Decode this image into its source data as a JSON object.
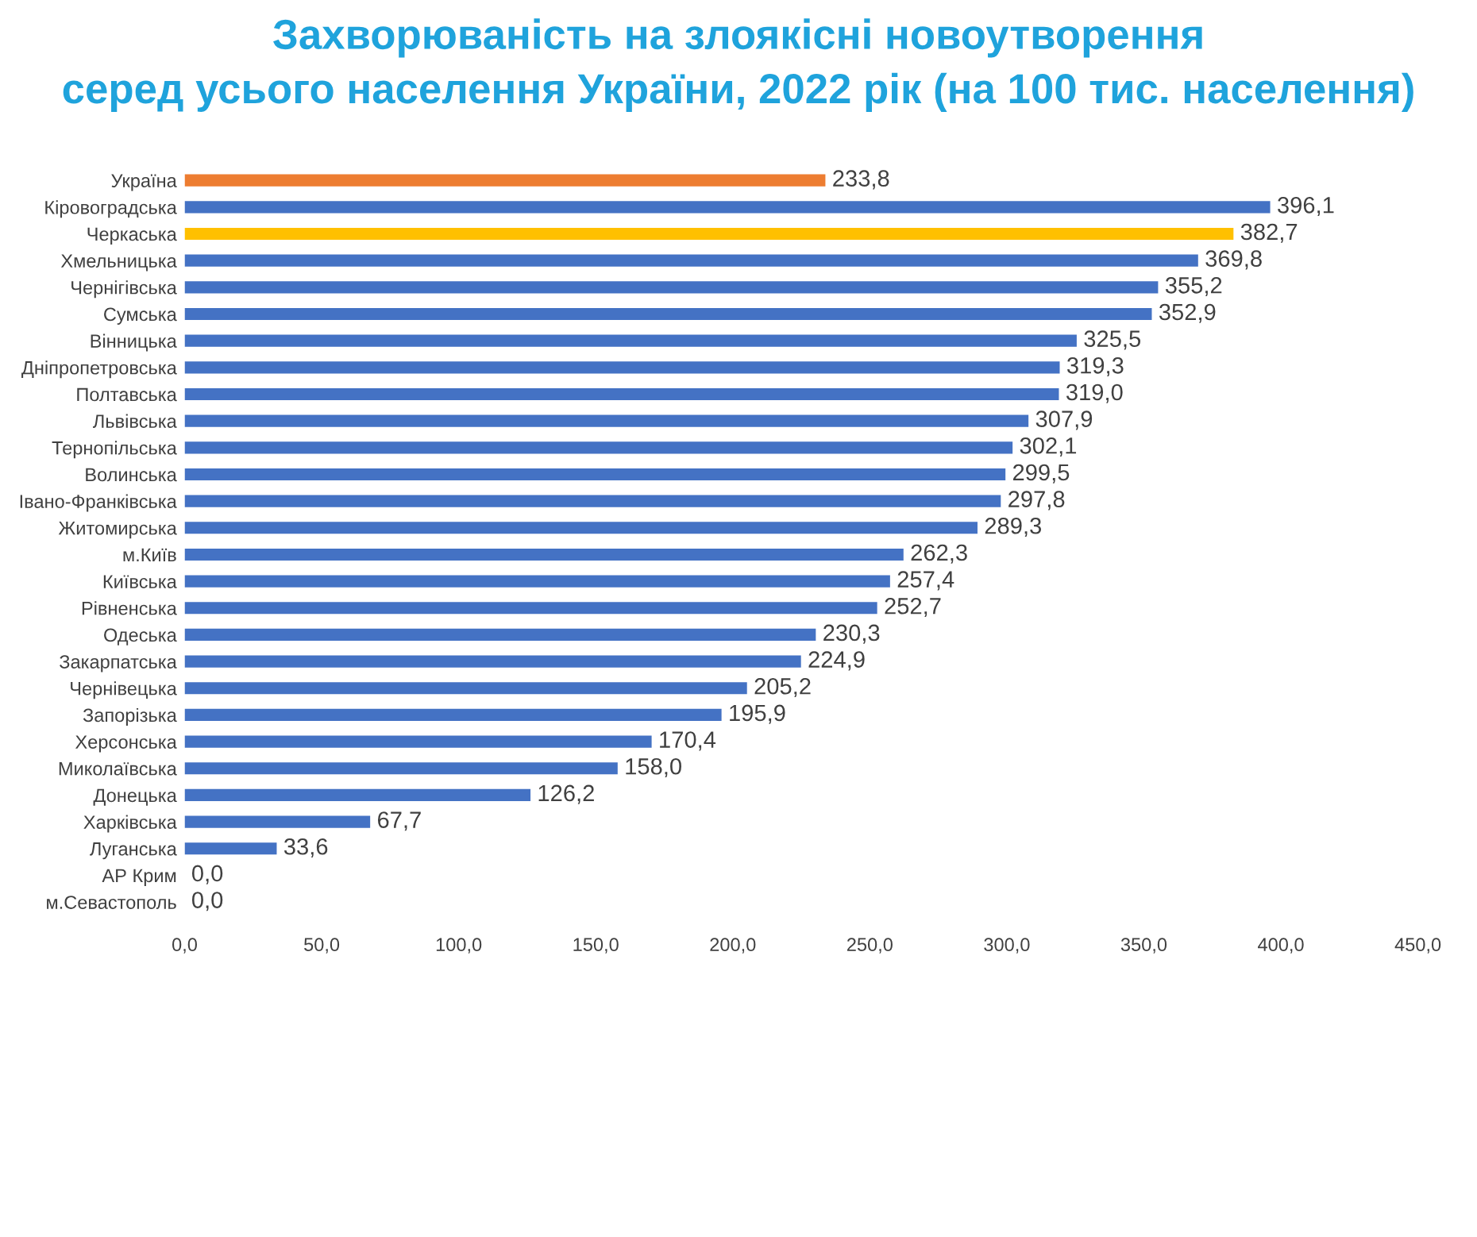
{
  "chart_data": {
    "type": "bar",
    "orientation": "horizontal",
    "title": "Захворюваність на злоякісні новоутворення\nсеред усього населення України, 2022 рік (на 100 тис. населення)",
    "categories": [
      "Україна",
      "Кіровоградська",
      "Черкаська",
      "Хмельницька",
      "Чернігівська",
      "Сумська",
      "Вінницька",
      "Дніпропетровська",
      "Полтавська",
      "Львівська",
      "Тернопільська",
      "Волинська",
      "Івано-Франківська",
      "Житомирська",
      "м.Київ",
      "Київська",
      "Рівненська",
      "Одеська",
      "Закарпатська",
      "Чернівецька",
      "Запорізька",
      "Херсонська",
      "Миколаївська",
      "Донецька",
      "Харківська",
      "Луганська",
      "АР Крим",
      "м.Севастополь"
    ],
    "values": [
      233.8,
      396.1,
      382.7,
      369.8,
      355.2,
      352.9,
      325.5,
      319.3,
      319.0,
      307.9,
      302.1,
      299.5,
      297.8,
      289.3,
      262.3,
      257.4,
      252.7,
      230.3,
      224.9,
      205.2,
      195.9,
      170.4,
      158.0,
      126.2,
      67.7,
      33.6,
      0.0,
      0.0
    ],
    "value_labels": [
      "233,8",
      "396,1",
      "382,7",
      "369,8",
      "355,2",
      "352,9",
      "325,5",
      "319,3",
      "319,0",
      "307,9",
      "302,1",
      "299,5",
      "297,8",
      "289,3",
      "262,3",
      "257,4",
      "252,7",
      "230,3",
      "224,9",
      "205,2",
      "195,9",
      "170,4",
      "158,0",
      "126,2",
      "67,7",
      "33,6",
      "0,0",
      "0,0"
    ],
    "colors": [
      "#ed7d31",
      "#4472c4",
      "#ffc000",
      "#4472c4",
      "#4472c4",
      "#4472c4",
      "#4472c4",
      "#4472c4",
      "#4472c4",
      "#4472c4",
      "#4472c4",
      "#4472c4",
      "#4472c4",
      "#4472c4",
      "#4472c4",
      "#4472c4",
      "#4472c4",
      "#4472c4",
      "#4472c4",
      "#4472c4",
      "#4472c4",
      "#4472c4",
      "#4472c4",
      "#4472c4",
      "#4472c4",
      "#4472c4",
      "#4472c4",
      "#4472c4"
    ],
    "xlim": [
      0,
      450
    ],
    "xticks": [
      {
        "value": 0,
        "label": "0,0"
      },
      {
        "value": 50,
        "label": "50,0"
      },
      {
        "value": 100,
        "label": "100,0"
      },
      {
        "value": 150,
        "label": "150,0"
      },
      {
        "value": 200,
        "label": "200,0"
      },
      {
        "value": 250,
        "label": "250,0"
      },
      {
        "value": 300,
        "label": "300,0"
      },
      {
        "value": 350,
        "label": "350,0"
      },
      {
        "value": 400,
        "label": "400,0"
      },
      {
        "value": 450,
        "label": "450,0"
      }
    ],
    "grid": false,
    "legend": false
  }
}
